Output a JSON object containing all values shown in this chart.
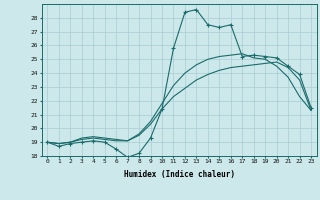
{
  "xlabel": "Humidex (Indice chaleur)",
  "bg_color": "#cde8ea",
  "grid_color": "#a8cdd2",
  "line_color": "#1a6b6b",
  "xlim_min": -0.5,
  "xlim_max": 23.5,
  "ylim_min": 18,
  "ylim_max": 29,
  "xticks": [
    0,
    1,
    2,
    3,
    4,
    5,
    6,
    7,
    8,
    9,
    10,
    11,
    12,
    13,
    14,
    15,
    16,
    17,
    18,
    19,
    20,
    21,
    22,
    23
  ],
  "yticks": [
    18,
    19,
    20,
    21,
    22,
    23,
    24,
    25,
    26,
    27,
    28
  ],
  "line1_x": [
    0,
    1,
    2,
    3,
    4,
    5,
    6,
    7,
    8,
    9,
    10,
    11,
    12,
    13,
    14,
    15,
    16,
    17,
    18,
    19,
    20,
    21,
    22,
    23
  ],
  "line1_y": [
    19.0,
    18.7,
    18.9,
    19.0,
    19.1,
    19.0,
    18.5,
    17.9,
    18.2,
    19.3,
    21.4,
    25.8,
    28.4,
    28.6,
    27.5,
    27.3,
    27.5,
    25.2,
    25.3,
    25.2,
    25.1,
    24.5,
    23.9,
    21.5
  ],
  "line2_x": [
    0,
    1,
    2,
    3,
    4,
    5,
    6,
    7,
    8,
    9,
    10,
    11,
    12,
    13,
    14,
    15,
    16,
    17,
    18,
    19,
    20,
    21,
    22,
    23
  ],
  "line2_y": [
    19.0,
    18.9,
    19.0,
    19.2,
    19.3,
    19.2,
    19.1,
    19.1,
    19.5,
    20.3,
    21.4,
    22.3,
    22.9,
    23.5,
    23.9,
    24.2,
    24.4,
    24.5,
    24.6,
    24.7,
    24.8,
    24.4,
    23.5,
    21.3
  ],
  "line3_x": [
    0,
    1,
    2,
    3,
    4,
    5,
    6,
    7,
    8,
    9,
    10,
    11,
    12,
    13,
    14,
    15,
    16,
    17,
    18,
    19,
    20,
    21,
    22,
    23
  ],
  "line3_y": [
    19.0,
    18.9,
    19.0,
    19.3,
    19.4,
    19.3,
    19.2,
    19.1,
    19.6,
    20.5,
    21.8,
    23.1,
    24.0,
    24.6,
    25.0,
    25.2,
    25.3,
    25.4,
    25.1,
    25.0,
    24.5,
    23.7,
    22.3,
    21.3
  ]
}
